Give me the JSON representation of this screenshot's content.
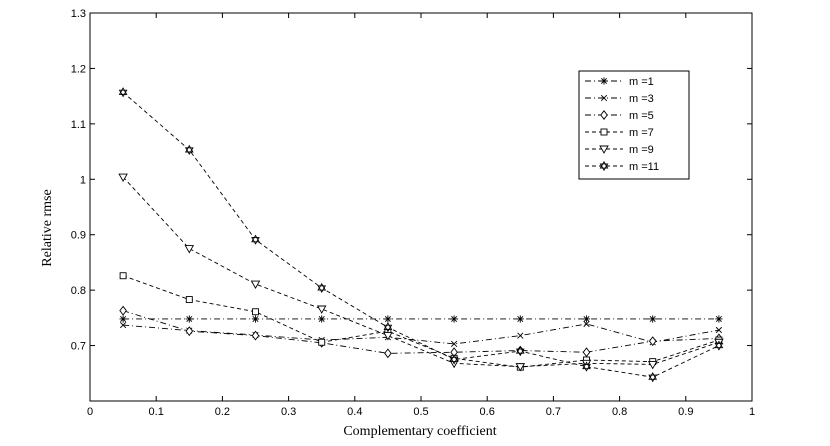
{
  "chart_data": {
    "type": "line",
    "title": "",
    "xlabel": "Complementary coefficient",
    "ylabel": "Relative rmse",
    "xlim": [
      0,
      1
    ],
    "ylim": [
      0.6,
      1.3
    ],
    "xticks": [
      "0",
      "0.1",
      "0.2",
      "0.3",
      "0.4",
      "0.5",
      "0.6",
      "0.7",
      "0.8",
      "0.9",
      "1"
    ],
    "yticks": [
      "0.7",
      "0.8",
      "0.9",
      "1",
      "1.1",
      "1.2",
      "1.3"
    ],
    "grid": false,
    "legend_position": "top-right",
    "x": [
      0.05,
      0.15,
      0.25,
      0.35,
      0.45,
      0.55,
      0.65,
      0.75,
      0.85,
      0.95
    ],
    "series": [
      {
        "name": "m =1",
        "marker": "asterisk",
        "dash": "dashdot",
        "values": [
          0.748,
          0.748,
          0.748,
          0.748,
          0.748,
          0.748,
          0.748,
          0.748,
          0.748,
          0.748
        ]
      },
      {
        "name": "m =3",
        "marker": "x",
        "dash": "dashdot",
        "values": [
          0.737,
          0.727,
          0.719,
          0.71,
          0.715,
          0.703,
          0.718,
          0.739,
          0.706,
          0.728
        ]
      },
      {
        "name": "m =5",
        "marker": "diamond",
        "dash": "dashdot",
        "values": [
          0.763,
          0.726,
          0.718,
          0.705,
          0.686,
          0.688,
          0.691,
          0.688,
          0.708,
          0.713
        ]
      },
      {
        "name": "m =7",
        "marker": "square",
        "dash": "dashed",
        "values": [
          0.826,
          0.783,
          0.761,
          0.706,
          0.726,
          0.677,
          0.661,
          0.674,
          0.671,
          0.71
        ]
      },
      {
        "name": "m =9",
        "marker": "triangle-down",
        "dash": "dashed",
        "values": [
          1.004,
          0.875,
          0.811,
          0.766,
          0.718,
          0.668,
          0.662,
          0.668,
          0.666,
          0.706
        ]
      },
      {
        "name": "m =11",
        "marker": "hexagram",
        "dash": "dashed",
        "values": [
          1.157,
          1.053,
          0.891,
          0.804,
          0.733,
          0.675,
          0.69,
          0.662,
          0.643,
          0.7
        ]
      }
    ]
  }
}
